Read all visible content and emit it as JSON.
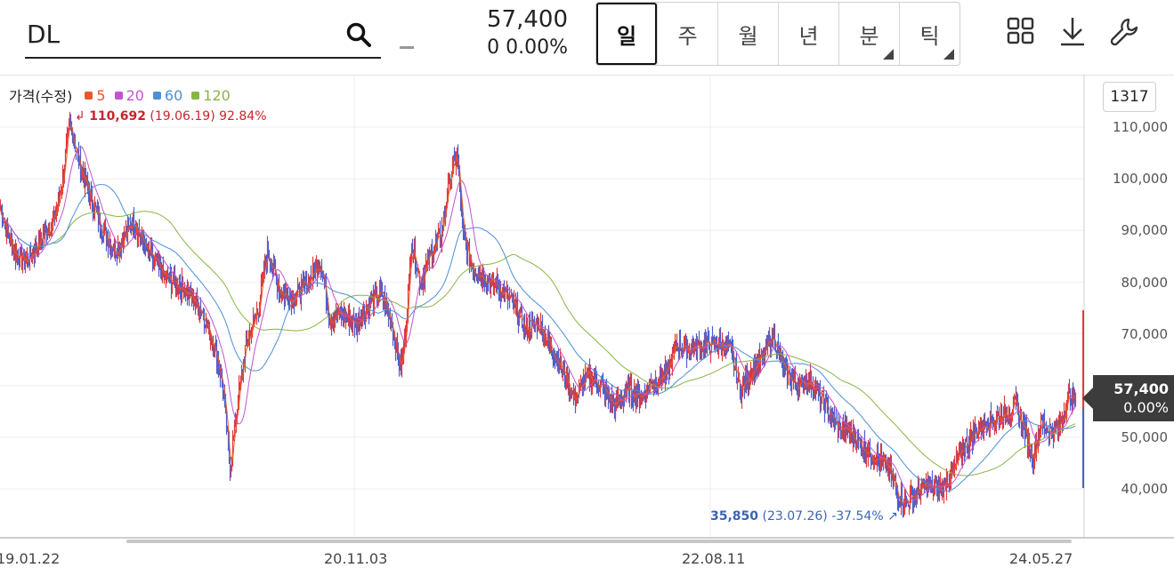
{
  "header": {
    "search_value": "DL",
    "dash": "-",
    "price": "57,400",
    "change": "0  0.00%",
    "periods": [
      {
        "label": "일",
        "active": true,
        "has_menu": false
      },
      {
        "label": "주",
        "active": false,
        "has_menu": false
      },
      {
        "label": "월",
        "active": false,
        "has_menu": false
      },
      {
        "label": "년",
        "active": false,
        "has_menu": false
      },
      {
        "label": "분",
        "active": false,
        "has_menu": true
      },
      {
        "label": "틱",
        "active": false,
        "has_menu": true
      }
    ],
    "tools": [
      "grid-layout-icon",
      "download-icon",
      "wrench-icon"
    ]
  },
  "legend": {
    "label": "가격(수정)",
    "items": [
      {
        "label": "5",
        "color": "#e8582d"
      },
      {
        "label": "20",
        "color": "#c354d1"
      },
      {
        "label": "60",
        "color": "#4d8fd6"
      },
      {
        "label": "120",
        "color": "#8ab545"
      }
    ]
  },
  "chart_data": {
    "type": "line",
    "x_ticks": [
      "19.01.22",
      "20.11.03",
      "22.08.11",
      "24.05.27"
    ],
    "y_ticks": [
      "110,000",
      "100,000",
      "90,000",
      "80,000",
      "70,000",
      "60,000",
      "50,000",
      "40,000"
    ],
    "ylim": [
      36000,
      112000
    ],
    "count": "1317",
    "max_marker": {
      "value": "110,692",
      "detail": "(19.06.19) 92.84%"
    },
    "min_marker": {
      "value": "35,850",
      "detail": "(23.07.26) -37.54%"
    },
    "current": {
      "price": "57,400",
      "change": "0.00%"
    },
    "colors": {
      "up": "#e23b3b",
      "down": "#4a5fd0",
      "ma5": "#e8582d",
      "ma20": "#c354d1",
      "ma60": "#4d8fd6",
      "ma120": "#8ab545"
    },
    "price_anchors": [
      [
        0,
        94000
      ],
      [
        15,
        86000
      ],
      [
        30,
        84000
      ],
      [
        45,
        88000
      ],
      [
        60,
        92000
      ],
      [
        70,
        100000
      ],
      [
        78,
        110692
      ],
      [
        90,
        102000
      ],
      [
        100,
        97000
      ],
      [
        115,
        90000
      ],
      [
        130,
        86000
      ],
      [
        150,
        92000
      ],
      [
        165,
        86000
      ],
      [
        185,
        81000
      ],
      [
        205,
        79000
      ],
      [
        225,
        75000
      ],
      [
        240,
        68000
      ],
      [
        250,
        60000
      ],
      [
        258,
        44000
      ],
      [
        266,
        56000
      ],
      [
        275,
        67000
      ],
      [
        290,
        75000
      ],
      [
        300,
        86000
      ],
      [
        315,
        78000
      ],
      [
        330,
        77000
      ],
      [
        345,
        80000
      ],
      [
        360,
        84000
      ],
      [
        370,
        73000
      ],
      [
        385,
        74000
      ],
      [
        400,
        72000
      ],
      [
        415,
        76000
      ],
      [
        428,
        78000
      ],
      [
        440,
        72000
      ],
      [
        450,
        63000
      ],
      [
        455,
        70000
      ],
      [
        462,
        88000
      ],
      [
        472,
        80000
      ],
      [
        485,
        86000
      ],
      [
        495,
        89000
      ],
      [
        505,
        100000
      ],
      [
        513,
        105000
      ],
      [
        520,
        89000
      ],
      [
        530,
        83000
      ],
      [
        545,
        81000
      ],
      [
        560,
        79000
      ],
      [
        575,
        76000
      ],
      [
        590,
        71000
      ],
      [
        605,
        72000
      ],
      [
        620,
        67000
      ],
      [
        635,
        62000
      ],
      [
        645,
        57000
      ],
      [
        660,
        62000
      ],
      [
        675,
        60000
      ],
      [
        690,
        56000
      ],
      [
        705,
        59000
      ],
      [
        720,
        58000
      ],
      [
        735,
        61000
      ],
      [
        748,
        62000
      ],
      [
        760,
        68000
      ],
      [
        775,
        67000
      ],
      [
        790,
        68000
      ],
      [
        805,
        68000
      ],
      [
        820,
        67000
      ],
      [
        832,
        59000
      ],
      [
        845,
        63000
      ],
      [
        858,
        66000
      ],
      [
        868,
        70000
      ],
      [
        880,
        63000
      ],
      [
        895,
        60000
      ],
      [
        910,
        61000
      ],
      [
        925,
        57000
      ],
      [
        940,
        52000
      ],
      [
        955,
        51000
      ],
      [
        970,
        48000
      ],
      [
        985,
        46000
      ],
      [
        998,
        44000
      ],
      [
        1010,
        38500
      ],
      [
        1018,
        37500
      ],
      [
        1028,
        39000
      ],
      [
        1040,
        40500
      ],
      [
        1055,
        40000
      ],
      [
        1070,
        43000
      ],
      [
        1082,
        48000
      ],
      [
        1095,
        51000
      ],
      [
        1110,
        53000
      ],
      [
        1125,
        54000
      ],
      [
        1140,
        56000
      ],
      [
        1150,
        52000
      ],
      [
        1160,
        46000
      ],
      [
        1170,
        53000
      ],
      [
        1180,
        51000
      ],
      [
        1190,
        52000
      ],
      [
        1200,
        58000
      ],
      [
        1208,
        57400
      ]
    ]
  }
}
